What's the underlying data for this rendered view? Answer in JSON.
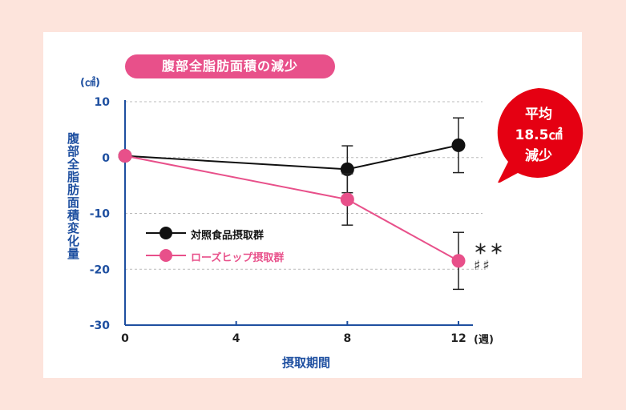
{
  "title": "腹部全脂肪面積の減少",
  "callout": {
    "line1": "平均",
    "line2": "18.5㎠",
    "line3": "減少"
  },
  "significance": {
    "line1": "＊＊",
    "line2": "♯♯"
  },
  "colors": {
    "control": "#111111",
    "rosehip": "#e8508a",
    "axis": "#1e4fa0",
    "callout": "#e50012"
  },
  "chart_data": {
    "type": "line",
    "y_unit": "(㎠)",
    "ylabel": "腹部全脂肪面積変化量",
    "xlabel": "摂取期間",
    "x_unit": "(週)",
    "ylim": [
      -30,
      10
    ],
    "xlim": [
      0,
      13
    ],
    "yticks": [
      10,
      0,
      -10,
      -20,
      -30
    ],
    "xticks": [
      0,
      4,
      8,
      12
    ],
    "grid": true,
    "legend_position": "left",
    "series": [
      {
        "name": "対照食品摂取群",
        "color": "#111111",
        "points": [
          {
            "x": 0,
            "y": 0.3
          },
          {
            "x": 8,
            "y": -2.1
          },
          {
            "x": 12,
            "y": 2.2
          }
        ],
        "errors": [
          0,
          4.2,
          4.9
        ]
      },
      {
        "name": "ローズヒップ摂取群",
        "color": "#e8508a",
        "points": [
          {
            "x": 0,
            "y": 0.3
          },
          {
            "x": 8,
            "y": -7.5
          },
          {
            "x": 12,
            "y": -18.5
          }
        ],
        "errors": [
          0,
          4.6,
          5.1
        ]
      }
    ]
  }
}
